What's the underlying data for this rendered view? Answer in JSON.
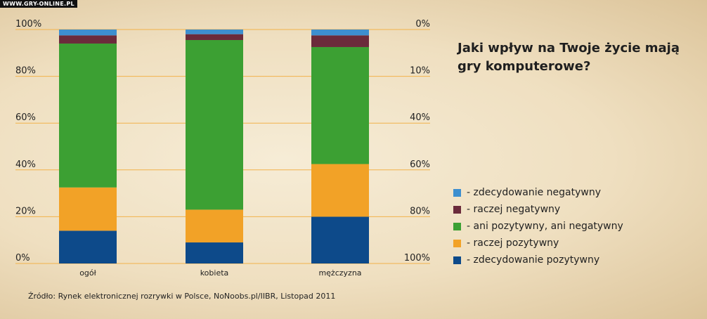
{
  "watermark": "WWW.GRY-ONLINE.PL",
  "chart_data": {
    "type": "bar",
    "stacked": true,
    "title": "Jaki wpływ na Twoje życie mają gry komputerowe?",
    "categories": [
      "ogół",
      "kobieta",
      "mężczyzna"
    ],
    "left_axis_ticks": [
      "0%",
      "20%",
      "40%",
      "60%",
      "80%",
      "100%"
    ],
    "right_axis_ticks": [
      "100%",
      "80%",
      "60%",
      "40%",
      "10%",
      "0%"
    ],
    "ylim": [
      0,
      100
    ],
    "series": [
      {
        "name": "- zdecydowanie pozytywny",
        "color": "#0d4a8a",
        "values": [
          14,
          9,
          20
        ]
      },
      {
        "name": "- raczej pozytywny",
        "color": "#f2a227",
        "values": [
          18.5,
          14,
          22.5
        ]
      },
      {
        "name": "- ani pozytywny, ani negatywny",
        "color": "#3ca033",
        "values": [
          61.5,
          72.5,
          50
        ]
      },
      {
        "name": "- raczej negatywny",
        "color": "#6b2b3b",
        "values": [
          3.5,
          2.5,
          5
        ]
      },
      {
        "name": "- zdecydowanie negatywny",
        "color": "#3d8fcf",
        "values": [
          2.5,
          2,
          2.5
        ]
      }
    ],
    "legend_order": [
      4,
      3,
      2,
      1,
      0
    ],
    "legend_position": "right",
    "grid": true
  },
  "source": "Źródło: Rynek elektronicznej rozrywki w Polsce, NoNoobs.pl/IIBR,  Listopad 2011"
}
